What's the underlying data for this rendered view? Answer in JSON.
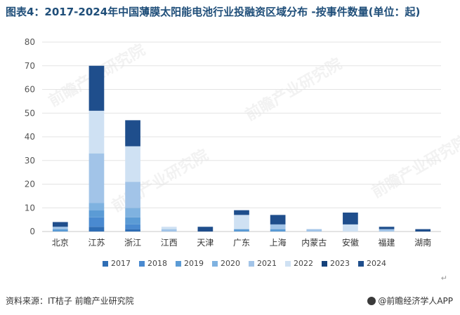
{
  "title": "图表4：2017-2024年中国薄膜太阳能电池行业投融资区域分布 -按事件数量(单位：起)",
  "source": "资料来源：IT桔子 前瞻产业研究院",
  "brand": "@前瞻经济学人APP",
  "watermark": "前瞻产业研究院",
  "return_mark": "↵",
  "chart_data": {
    "type": "bar",
    "stacked": true,
    "categories": [
      "北京",
      "江苏",
      "浙江",
      "江西",
      "天津",
      "广东",
      "上海",
      "内蒙古",
      "安徽",
      "福建",
      "湖南"
    ],
    "ylim": [
      0,
      80
    ],
    "yticks": [
      0,
      10,
      20,
      30,
      40,
      50,
      60,
      70,
      80
    ],
    "grid": true,
    "legend_position": "bottom",
    "series": [
      {
        "name": "2017",
        "color": "#2f6eb5",
        "values": [
          0,
          2,
          1,
          0,
          0,
          0,
          0,
          0,
          0,
          0,
          0
        ]
      },
      {
        "name": "2018",
        "color": "#4a8ad0",
        "values": [
          0,
          4,
          2,
          0,
          0,
          0,
          0,
          0,
          0,
          0,
          0
        ]
      },
      {
        "name": "2019",
        "color": "#5b9bd5",
        "values": [
          1,
          3,
          3,
          0,
          0,
          1,
          1,
          0,
          0,
          0,
          0
        ]
      },
      {
        "name": "2020",
        "color": "#7fb2e0",
        "values": [
          0,
          3,
          4,
          0,
          0,
          0,
          0,
          0,
          0,
          0,
          0
        ]
      },
      {
        "name": "2021",
        "color": "#a2c4e8",
        "values": [
          1,
          21,
          11,
          1,
          0,
          0,
          2,
          1,
          0,
          1,
          0
        ]
      },
      {
        "name": "2022",
        "color": "#cfe1f3",
        "values": [
          0,
          18,
          15,
          1,
          0,
          6,
          0,
          0,
          3,
          0,
          0
        ]
      },
      {
        "name": "2023",
        "color": "#14417a",
        "values": [
          0,
          0,
          0,
          0,
          0,
          0,
          0,
          0,
          0,
          0,
          0
        ]
      },
      {
        "name": "2024",
        "color": "#1f4e8c",
        "values": [
          2,
          19,
          11,
          0,
          2,
          2,
          4,
          0,
          5,
          1,
          1
        ]
      }
    ]
  }
}
